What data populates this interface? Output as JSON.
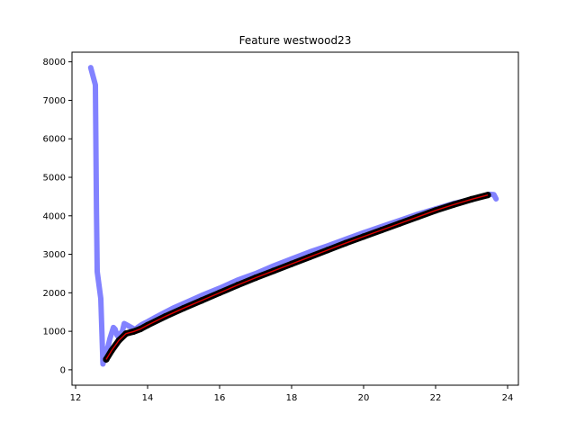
{
  "chart_data": {
    "type": "line",
    "title": "Feature westwood23",
    "xlabel": "",
    "ylabel": "",
    "xlim": [
      11.9,
      24.3
    ],
    "ylim": [
      -400,
      8250
    ],
    "xticks": [
      12,
      14,
      16,
      18,
      20,
      22,
      24
    ],
    "yticks": [
      0,
      1000,
      2000,
      3000,
      4000,
      5000,
      6000,
      7000,
      8000
    ],
    "grid": false,
    "series": [
      {
        "style": "thick-translucent-blue",
        "color": "#7b7bff",
        "x": [
          12.42,
          12.55,
          12.58,
          12.6,
          12.7,
          12.73,
          12.76,
          12.79,
          12.82,
          12.86,
          12.9,
          12.95,
          13.0,
          13.05,
          13.1,
          13.15,
          13.2,
          13.25,
          13.3,
          13.35,
          13.45,
          13.55,
          13.65,
          13.75,
          13.85,
          14.0,
          14.25,
          14.5,
          14.75,
          15.0,
          15.5,
          16.0,
          16.5,
          17.0,
          17.5,
          18.0,
          18.5,
          19.0,
          19.5,
          20.0,
          20.5,
          21.0,
          21.5,
          22.0,
          22.5,
          23.0,
          23.3,
          23.5,
          23.62,
          23.68
        ],
        "y": [
          7850,
          7400,
          4100,
          2550,
          1850,
          1000,
          150,
          250,
          350,
          500,
          600,
          800,
          950,
          1100,
          1050,
          900,
          850,
          950,
          1000,
          1200,
          1150,
          1100,
          1050,
          1120,
          1180,
          1250,
          1380,
          1500,
          1620,
          1720,
          1930,
          2120,
          2330,
          2500,
          2700,
          2880,
          3060,
          3220,
          3390,
          3560,
          3720,
          3880,
          4040,
          4180,
          4320,
          4430,
          4500,
          4560,
          4550,
          4440
        ]
      },
      {
        "style": "black-points",
        "color": "#000000",
        "x": [
          12.85,
          13.0,
          13.2,
          13.4,
          13.6,
          13.8,
          14.0,
          14.5,
          15.0,
          15.5,
          16.0,
          16.5,
          17.0,
          17.5,
          18.0,
          18.5,
          19.0,
          19.5,
          20.0,
          20.5,
          21.0,
          21.5,
          22.0,
          22.5,
          23.0,
          23.45
        ],
        "y": [
          270,
          500,
          760,
          940,
          990,
          1060,
          1160,
          1390,
          1600,
          1800,
          2000,
          2200,
          2390,
          2570,
          2750,
          2930,
          3110,
          3290,
          3460,
          3630,
          3800,
          3970,
          4140,
          4290,
          4430,
          4540
        ]
      },
      {
        "style": "red-fit-line",
        "color": "#dd0000",
        "x": [
          12.85,
          13.0,
          13.2,
          13.4,
          13.6,
          13.8,
          14.0,
          14.5,
          15.0,
          15.5,
          16.0,
          16.5,
          17.0,
          17.5,
          18.0,
          18.5,
          19.0,
          19.5,
          20.0,
          20.5,
          21.0,
          21.5,
          22.0,
          22.5,
          23.0,
          23.45
        ],
        "y": [
          270,
          500,
          760,
          940,
          990,
          1060,
          1160,
          1390,
          1600,
          1800,
          2000,
          2200,
          2390,
          2570,
          2750,
          2930,
          3110,
          3290,
          3460,
          3630,
          3800,
          3970,
          4140,
          4290,
          4430,
          4540
        ]
      }
    ]
  }
}
